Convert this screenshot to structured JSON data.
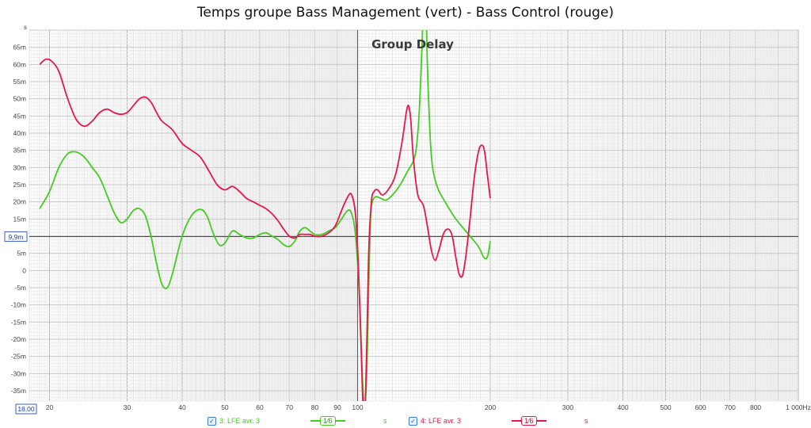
{
  "window": {
    "title": "Temps groupe Bass Management (vert) - Bass Control (rouge)"
  },
  "legend": {
    "items": [
      {
        "label": "3: LFE avr. 3",
        "color": "#44cc22",
        "smoothing": "1⁄6",
        "unit": "s"
      },
      {
        "label": "4: LFE avr. 3",
        "color": "#e8174a",
        "smoothing": "1⁄6",
        "unit": "s"
      }
    ]
  },
  "chart_data": {
    "type": "line",
    "title": "Group Delay",
    "xscale": "log",
    "xlim": [
      18,
      1000
    ],
    "ylim": [
      -0.038,
      0.07
    ],
    "yunit": "s",
    "xunit": "Hz",
    "cursor": {
      "x": 18,
      "x_label": "18,00",
      "y": 0.0099,
      "y_label": "9,9m"
    },
    "grid": true,
    "xticks": [
      {
        "v": 20,
        "label": "20"
      },
      {
        "v": 30,
        "label": "30"
      },
      {
        "v": 40,
        "label": "40"
      },
      {
        "v": 50,
        "label": "50"
      },
      {
        "v": 60,
        "label": "60"
      },
      {
        "v": 70,
        "label": "70"
      },
      {
        "v": 80,
        "label": "80"
      },
      {
        "v": 90,
        "label": "90"
      },
      {
        "v": 100,
        "label": "100"
      },
      {
        "v": 200,
        "label": "200"
      },
      {
        "v": 300,
        "label": "300"
      },
      {
        "v": 400,
        "label": "400"
      },
      {
        "v": 500,
        "label": "500"
      },
      {
        "v": 600,
        "label": "600"
      },
      {
        "v": 700,
        "label": "700"
      },
      {
        "v": 800,
        "label": "800"
      },
      {
        "v": 1000,
        "label": "1 000Hz"
      }
    ],
    "yticks": [
      {
        "v": 0.065,
        "label": "65m"
      },
      {
        "v": 0.06,
        "label": "60m"
      },
      {
        "v": 0.055,
        "label": "55m"
      },
      {
        "v": 0.05,
        "label": "50m"
      },
      {
        "v": 0.045,
        "label": "45m"
      },
      {
        "v": 0.04,
        "label": "40m"
      },
      {
        "v": 0.035,
        "label": "35m"
      },
      {
        "v": 0.03,
        "label": "30m"
      },
      {
        "v": 0.025,
        "label": "25m"
      },
      {
        "v": 0.02,
        "label": "20m"
      },
      {
        "v": 0.015,
        "label": "15m"
      },
      {
        "v": 0.005,
        "label": "5m"
      },
      {
        "v": 0,
        "label": "0"
      },
      {
        "v": -0.005,
        "label": "-5m"
      },
      {
        "v": -0.01,
        "label": "-10m"
      },
      {
        "v": -0.015,
        "label": "-15m"
      },
      {
        "v": -0.02,
        "label": "-20m"
      },
      {
        "v": -0.025,
        "label": "-25m"
      },
      {
        "v": -0.03,
        "label": "-30m"
      },
      {
        "v": -0.035,
        "label": "-35m"
      }
    ],
    "ylabel_unit": "s",
    "series": [
      {
        "name": "3: LFE avr. 3",
        "color": "#44cc22",
        "points": [
          [
            19,
            0.018
          ],
          [
            20,
            0.023
          ],
          [
            21,
            0.03
          ],
          [
            22,
            0.034
          ],
          [
            23,
            0.0345
          ],
          [
            24,
            0.033
          ],
          [
            25,
            0.03
          ],
          [
            26,
            0.027
          ],
          [
            27,
            0.022
          ],
          [
            28,
            0.017
          ],
          [
            29,
            0.014
          ],
          [
            30,
            0.015
          ],
          [
            31,
            0.0175
          ],
          [
            32,
            0.018
          ],
          [
            33,
            0.016
          ],
          [
            34,
            0.01
          ],
          [
            35,
            0.002
          ],
          [
            36,
            -0.004
          ],
          [
            37,
            -0.005
          ],
          [
            38,
            -0.001
          ],
          [
            40,
            0.01
          ],
          [
            42,
            0.016
          ],
          [
            44,
            0.0178
          ],
          [
            45.5,
            0.016
          ],
          [
            47,
            0.011
          ],
          [
            48.5,
            0.0075
          ],
          [
            50,
            0.008
          ],
          [
            52,
            0.0115
          ],
          [
            54,
            0.0105
          ],
          [
            56,
            0.0095
          ],
          [
            58,
            0.0095
          ],
          [
            60,
            0.0105
          ],
          [
            62,
            0.011
          ],
          [
            64,
            0.01
          ],
          [
            66,
            0.009
          ],
          [
            68,
            0.0075
          ],
          [
            70,
            0.007
          ],
          [
            72,
            0.0085
          ],
          [
            74,
            0.0115
          ],
          [
            76,
            0.0125
          ],
          [
            78,
            0.0115
          ],
          [
            80,
            0.0105
          ],
          [
            83,
            0.0105
          ],
          [
            86,
            0.0115
          ],
          [
            89,
            0.0125
          ],
          [
            92,
            0.015
          ],
          [
            95,
            0.0175
          ],
          [
            97,
            0.0165
          ],
          [
            99,
            0.01
          ],
          [
            101,
            -0.008
          ],
          [
            102.5,
            -0.03
          ],
          [
            103.5,
            -0.04
          ],
          [
            104,
            -0.04
          ],
          [
            105,
            -0.028
          ],
          [
            106,
            -0.005
          ],
          [
            107,
            0.015
          ],
          [
            108,
            0.02
          ],
          [
            110,
            0.0215
          ],
          [
            113,
            0.021
          ],
          [
            116,
            0.0205
          ],
          [
            120,
            0.022
          ],
          [
            125,
            0.025
          ],
          [
            130,
            0.029
          ],
          [
            134,
            0.032
          ],
          [
            136,
            0.036
          ],
          [
            138,
            0.046
          ],
          [
            140,
            0.065
          ],
          [
            141,
            0.075
          ],
          [
            143,
            0.075
          ],
          [
            144,
            0.06
          ],
          [
            146,
            0.04
          ],
          [
            148,
            0.03
          ],
          [
            152,
            0.024
          ],
          [
            158,
            0.02
          ],
          [
            165,
            0.016
          ],
          [
            172,
            0.013
          ],
          [
            180,
            0.01
          ],
          [
            188,
            0.007
          ],
          [
            193,
            0.004
          ],
          [
            196,
            0.0035
          ],
          [
            198,
            0.005
          ],
          [
            200,
            0.0085
          ]
        ]
      },
      {
        "name": "4: LFE avr. 3",
        "color": "#e8174a",
        "points": [
          [
            19,
            0.06
          ],
          [
            19.6,
            0.0615
          ],
          [
            20.2,
            0.061
          ],
          [
            21,
            0.058
          ],
          [
            22,
            0.05
          ],
          [
            23,
            0.044
          ],
          [
            24,
            0.042
          ],
          [
            25,
            0.0435
          ],
          [
            26,
            0.046
          ],
          [
            27,
            0.047
          ],
          [
            28,
            0.046
          ],
          [
            29,
            0.0455
          ],
          [
            30,
            0.046
          ],
          [
            31,
            0.048
          ],
          [
            32,
            0.05
          ],
          [
            33,
            0.0505
          ],
          [
            34,
            0.049
          ],
          [
            35,
            0.046
          ],
          [
            36,
            0.0435
          ],
          [
            38,
            0.041
          ],
          [
            40,
            0.037
          ],
          [
            42,
            0.035
          ],
          [
            44,
            0.033
          ],
          [
            46,
            0.029
          ],
          [
            48,
            0.025
          ],
          [
            50,
            0.0235
          ],
          [
            52,
            0.0245
          ],
          [
            54,
            0.023
          ],
          [
            56,
            0.021
          ],
          [
            58,
            0.02
          ],
          [
            60,
            0.019
          ],
          [
            62,
            0.018
          ],
          [
            64,
            0.0165
          ],
          [
            66,
            0.0145
          ],
          [
            68,
            0.012
          ],
          [
            70,
            0.01
          ],
          [
            72,
            0.0095
          ],
          [
            74,
            0.0105
          ],
          [
            76,
            0.0105
          ],
          [
            78,
            0.0105
          ],
          [
            80,
            0.01
          ],
          [
            83,
            0.01
          ],
          [
            86,
            0.011
          ],
          [
            89,
            0.013
          ],
          [
            92,
            0.0175
          ],
          [
            95,
            0.0215
          ],
          [
            97,
            0.022
          ],
          [
            99,
            0.016
          ],
          [
            100.5,
            0.0
          ],
          [
            102,
            -0.025
          ],
          [
            103,
            -0.04
          ],
          [
            104,
            -0.04
          ],
          [
            105,
            -0.02
          ],
          [
            106,
            0.005
          ],
          [
            107.5,
            0.02
          ],
          [
            109,
            0.023
          ],
          [
            111,
            0.0235
          ],
          [
            114,
            0.022
          ],
          [
            118,
            0.024
          ],
          [
            122,
            0.028
          ],
          [
            126,
            0.037
          ],
          [
            129,
            0.046
          ],
          [
            130.5,
            0.048
          ],
          [
            132,
            0.044
          ],
          [
            134,
            0.032
          ],
          [
            137,
            0.022
          ],
          [
            141,
            0.019
          ],
          [
            144,
            0.013
          ],
          [
            147,
            0.006
          ],
          [
            150,
            0.003
          ],
          [
            153,
            0.006
          ],
          [
            157,
            0.011
          ],
          [
            161,
            0.012
          ],
          [
            164,
            0.01
          ],
          [
            167,
            0.004
          ],
          [
            170,
            -0.001
          ],
          [
            173,
            -0.0015
          ],
          [
            176,
            0.004
          ],
          [
            180,
            0.015
          ],
          [
            184,
            0.027
          ],
          [
            188,
            0.0345
          ],
          [
            191,
            0.0365
          ],
          [
            194,
            0.035
          ],
          [
            197,
            0.028
          ],
          [
            200,
            0.021
          ]
        ]
      }
    ]
  }
}
